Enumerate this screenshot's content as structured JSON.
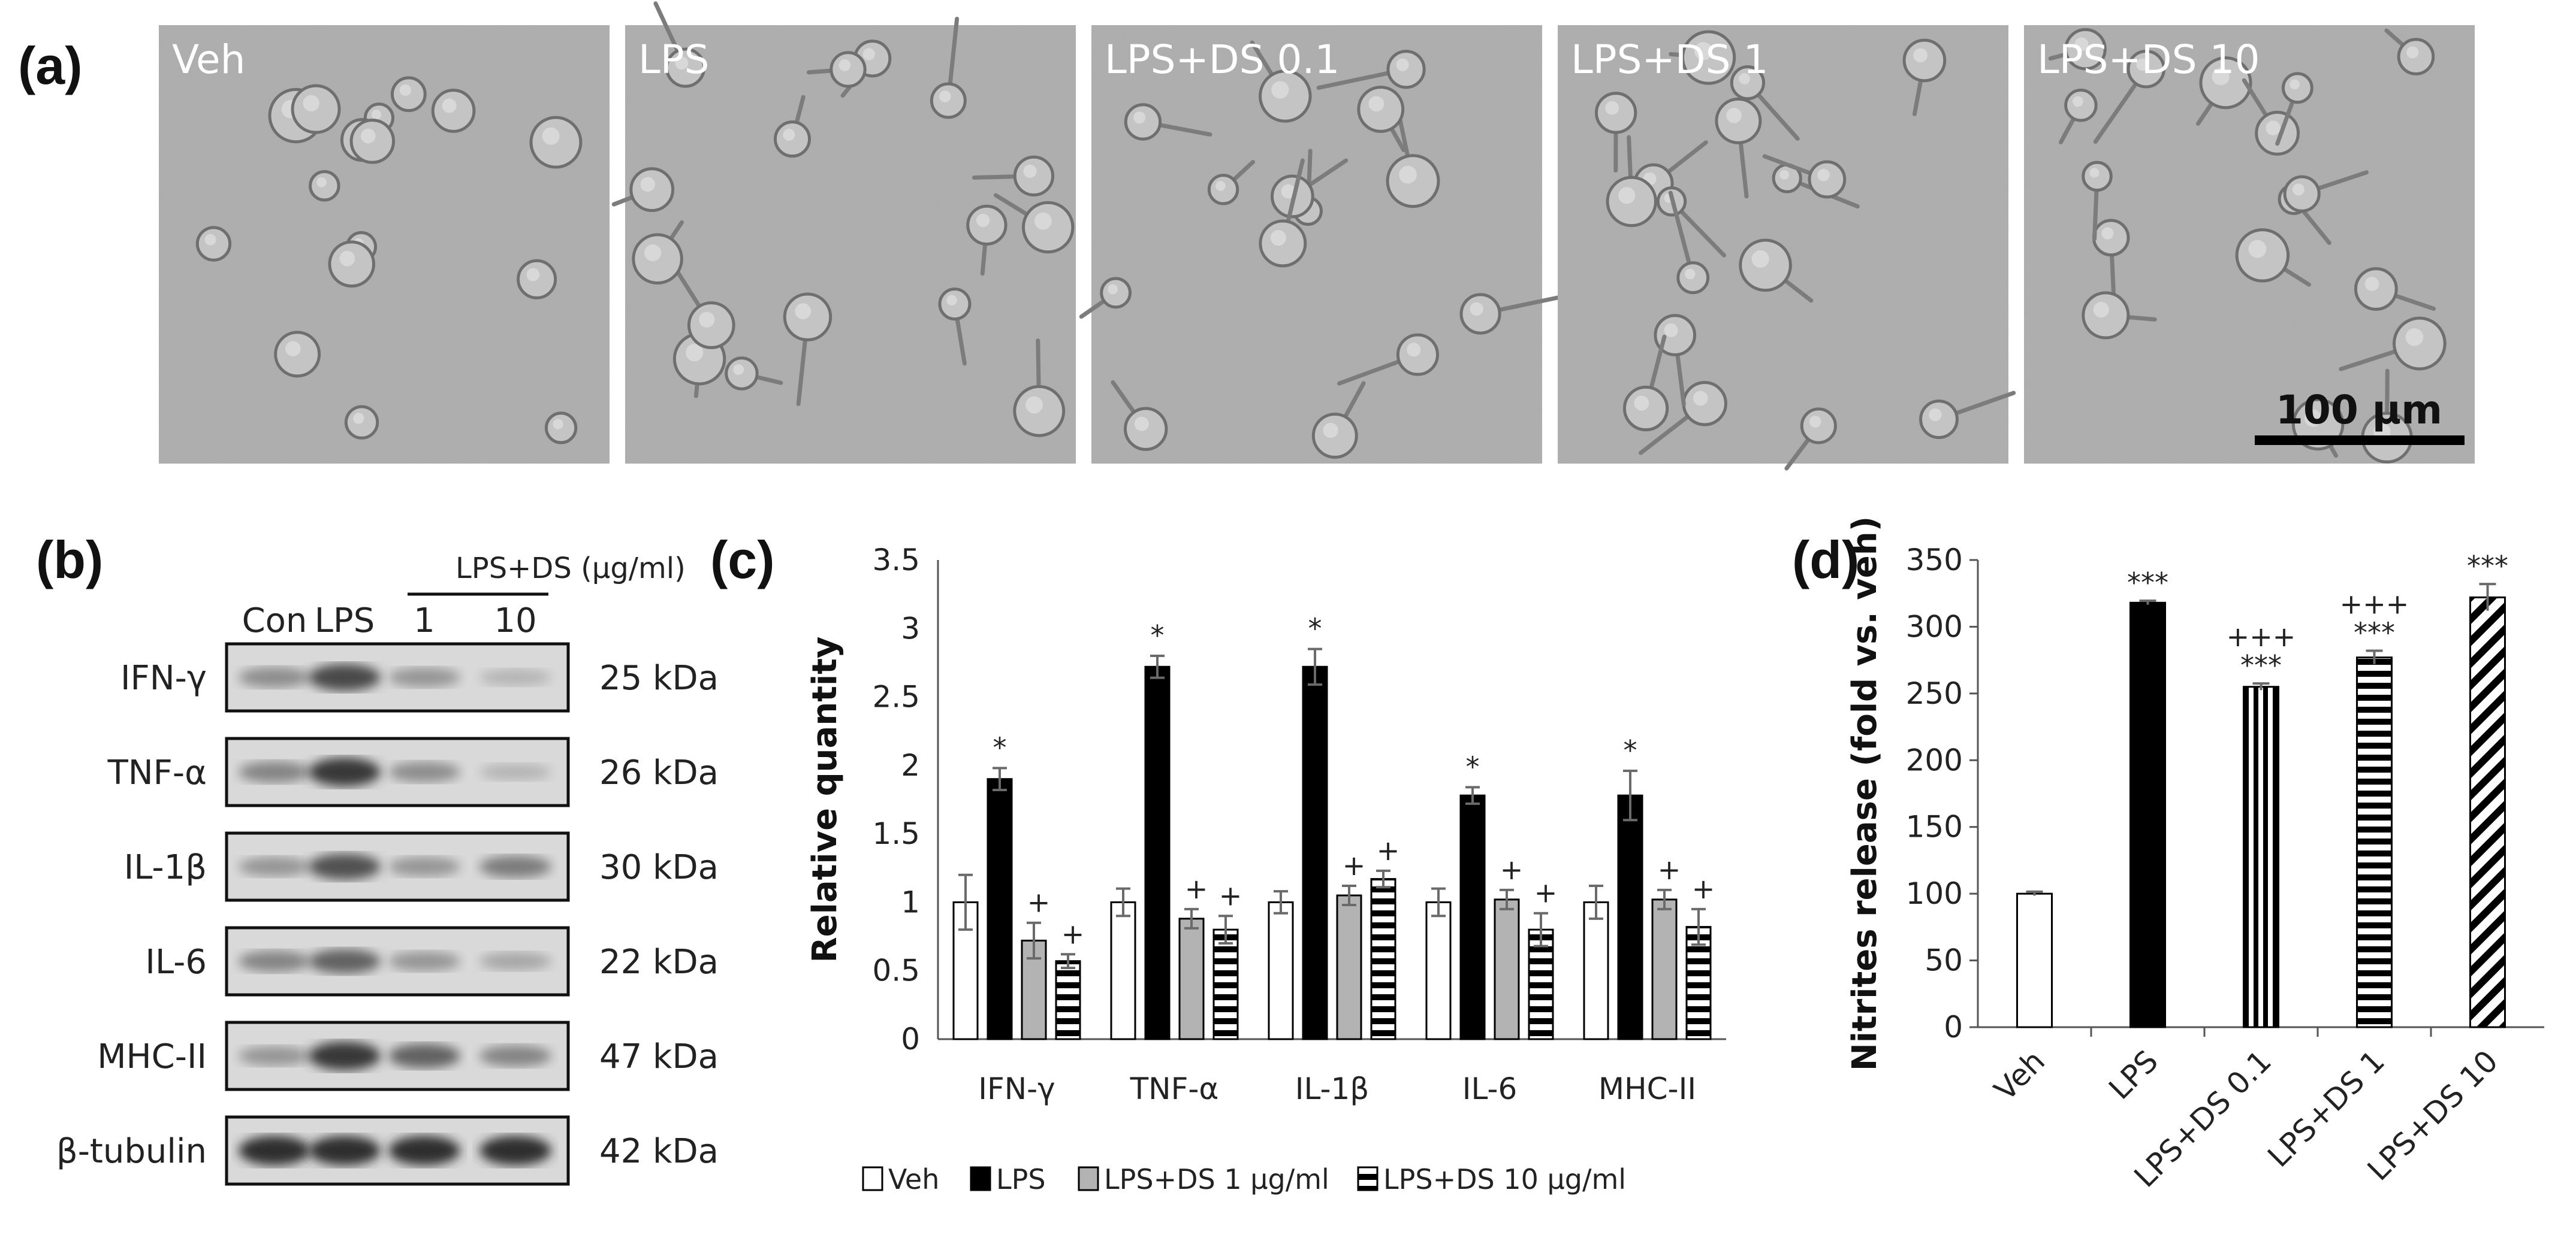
{
  "panels": {
    "a": "(a)",
    "b": "(b)",
    "c": "(c)",
    "d": "(d)"
  },
  "micrographs": {
    "labels": [
      "Veh",
      "LPS",
      "LPS+DS 0.1",
      "LPS+DS 1",
      "LPS+DS 10"
    ],
    "scale_bar": "100 μm"
  },
  "western_blot": {
    "treatment_header": "LPS+DS (μg/ml)",
    "lanes": [
      "Con",
      "LPS",
      "1",
      "10"
    ],
    "proteins": [
      {
        "name": "IFN-γ",
        "kda": "25 kDa",
        "intensity": [
          0.35,
          0.75,
          0.3,
          0.12
        ]
      },
      {
        "name": "TNF-α",
        "kda": "26 kDa",
        "intensity": [
          0.4,
          0.85,
          0.35,
          0.12
        ]
      },
      {
        "name": "IL-1β",
        "kda": "30 kDa",
        "intensity": [
          0.3,
          0.7,
          0.3,
          0.45
        ]
      },
      {
        "name": "IL-6",
        "kda": "22 kDa",
        "intensity": [
          0.4,
          0.6,
          0.3,
          0.2
        ]
      },
      {
        "name": "MHC-II",
        "kda": "47 kDa",
        "intensity": [
          0.3,
          0.85,
          0.6,
          0.4
        ]
      },
      {
        "name": "β-tubulin",
        "kda": "42 kDa",
        "intensity": [
          0.9,
          0.9,
          0.9,
          0.9
        ]
      }
    ]
  },
  "chart_data": [
    {
      "id": "c",
      "type": "bar",
      "title": "",
      "xlabel": "",
      "ylabel": "Relative quantity",
      "ylim": [
        0,
        3.5
      ],
      "yticks": [
        "0",
        "0.5",
        "1",
        "1.5",
        "2",
        "2.5",
        "3",
        "3.5"
      ],
      "categories": [
        "IFN-γ",
        "TNF-α",
        "IL-1β",
        "IL-6",
        "MHC-II"
      ],
      "series": [
        {
          "name": "Veh",
          "pattern": "white",
          "values": [
            1.0,
            1.0,
            1.0,
            1.0,
            1.0
          ],
          "errors": [
            0.2,
            0.1,
            0.08,
            0.1,
            0.12
          ],
          "sig": [
            "",
            "",
            "",
            "",
            ""
          ]
        },
        {
          "name": "LPS",
          "pattern": "black",
          "values": [
            1.9,
            2.72,
            2.72,
            1.78,
            1.78
          ],
          "errors": [
            0.08,
            0.08,
            0.13,
            0.06,
            0.18
          ],
          "sig": [
            "*",
            "*",
            "*",
            "*",
            "*"
          ]
        },
        {
          "name": "LPS+DS 1 μg/ml",
          "pattern": "gray",
          "values": [
            0.72,
            0.88,
            1.05,
            1.02,
            1.02
          ],
          "errors": [
            0.13,
            0.07,
            0.07,
            0.07,
            0.07
          ],
          "sig": [
            "+",
            "+",
            "+",
            "+",
            "+"
          ]
        },
        {
          "name": "LPS+DS 10 μg/ml",
          "pattern": "hstripe",
          "values": [
            0.57,
            0.8,
            1.17,
            0.8,
            0.82
          ],
          "errors": [
            0.05,
            0.1,
            0.06,
            0.12,
            0.13
          ],
          "sig": [
            "+",
            "+",
            "+",
            "+",
            "+"
          ]
        }
      ],
      "legend": "bottom"
    },
    {
      "id": "d",
      "type": "bar",
      "title": "",
      "xlabel": "",
      "ylabel": "Nitrites release (fold vs. veh)",
      "ylim": [
        0,
        350
      ],
      "yticks": [
        "0",
        "50",
        "100",
        "150",
        "200",
        "250",
        "300",
        "350"
      ],
      "categories": [
        "Veh",
        "LPS",
        "LPS+DS 0.1",
        "LPS+DS 1",
        "LPS+DS 10"
      ],
      "values": [
        100,
        318,
        255,
        277,
        322
      ],
      "errors": [
        1.5,
        1.5,
        2.5,
        5,
        10
      ],
      "patterns": [
        "white",
        "black",
        "vstripe",
        "hstripe",
        "diag"
      ],
      "sig_top": [
        "",
        "***",
        "***",
        "***",
        "***"
      ],
      "sig_second": [
        "",
        "",
        "+++",
        "+++",
        ""
      ]
    }
  ]
}
